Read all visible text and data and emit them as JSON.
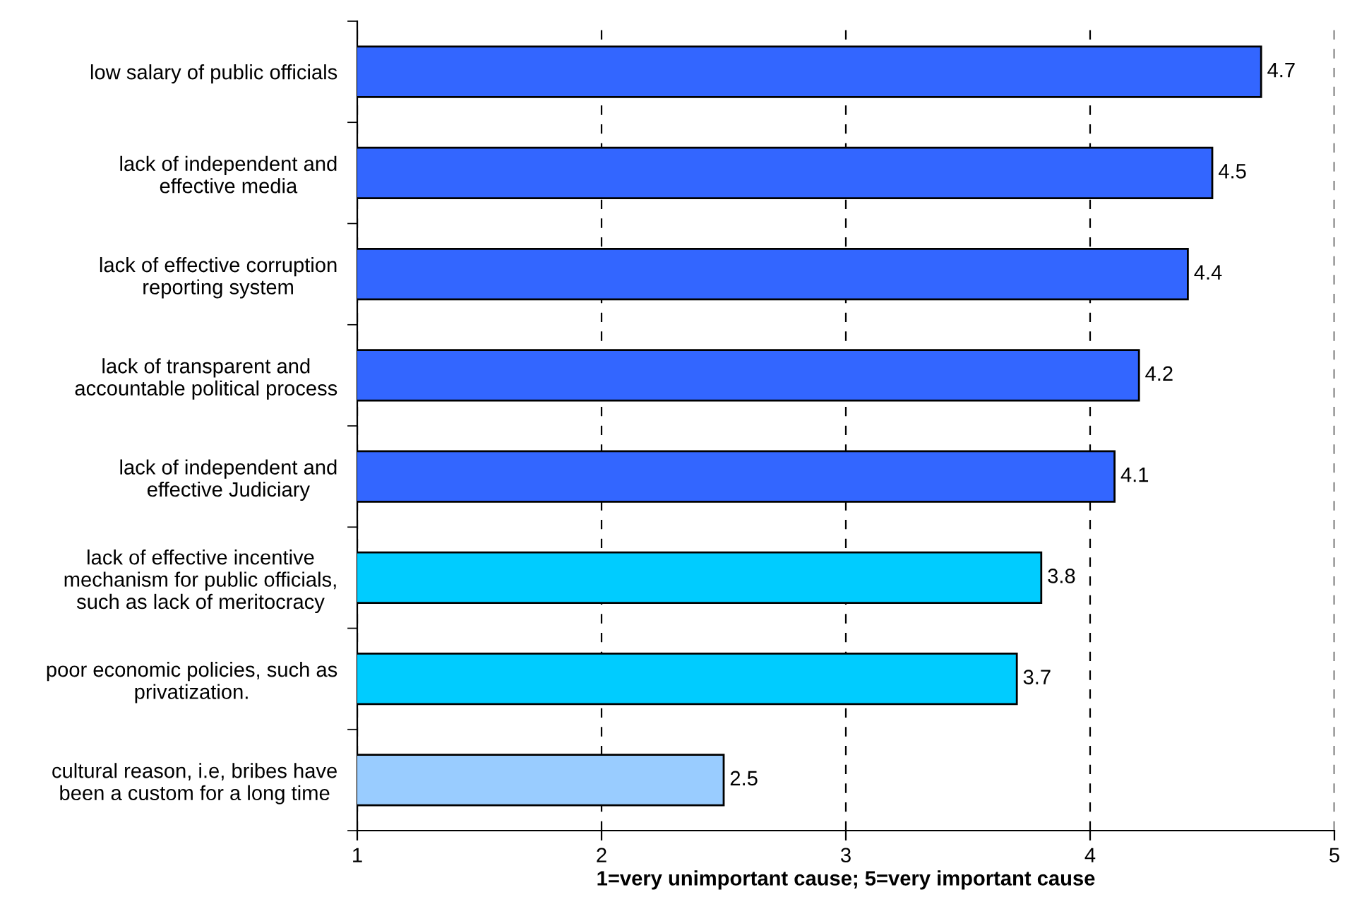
{
  "chart_data": {
    "type": "bar",
    "orientation": "horizontal",
    "xlabel": "1=very unimportant cause; 5=very important cause",
    "categories": [
      "low salary of public officials",
      "lack of independent and\neffective media",
      "lack of effective corruption\nreporting system",
      "lack of transparent and\naccountable political process",
      "lack of independent and\neffective Judiciary",
      "lack of effective incentive\nmechanism for public officials,\nsuch as lack of meritocracy",
      "poor economic policies, such as\nprivatization.",
      "cultural reason, i.e, bribes have\nbeen a custom for a long time"
    ],
    "values": [
      4.7,
      4.5,
      4.4,
      4.2,
      4.1,
      3.8,
      3.7,
      2.5
    ],
    "colors": [
      "#3366ff",
      "#3366ff",
      "#3366ff",
      "#3366ff",
      "#3366ff",
      "#00ccff",
      "#00ccff",
      "#99ccff"
    ],
    "xlim": [
      1,
      5
    ],
    "xticks": [
      1,
      2,
      3,
      4,
      5
    ],
    "grid": "x",
    "data_labels": true
  }
}
